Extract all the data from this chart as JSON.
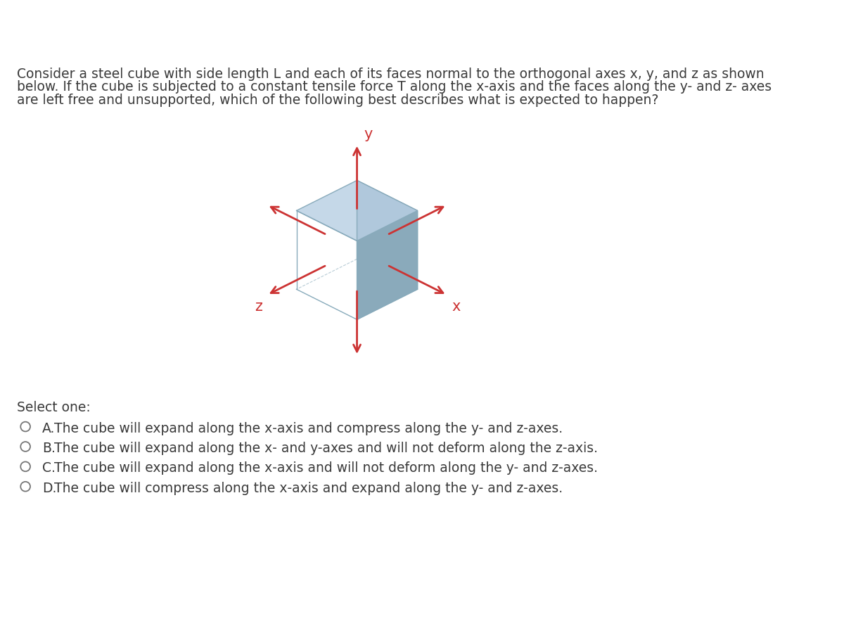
{
  "background_color": "#ffffff",
  "question_text_line1": "Consider a steel cube with side length L and each of its faces normal to the orthogonal axes x, y, and z as shown",
  "question_text_line2": "below. If the cube is subjected to a constant tensile force T along the x-axis and the faces along the y- and z- axes",
  "question_text_line3": "are left free and unsupported, which of the following best describes what is expected to happen?",
  "question_fontsize": 13.5,
  "question_color": "#3a3a3a",
  "select_one_text": "Select one:",
  "select_one_fontsize": 13.5,
  "select_one_color": "#3a3a3a",
  "options": [
    {
      "label": "A.",
      "text": "The cube will expand along the x-axis and compress along the y- and z-axes."
    },
    {
      "label": "B.",
      "text": "The cube will expand along the x- and y-axes and will not deform along the z-axis."
    },
    {
      "label": "C.",
      "text": "The cube will expand along the x-axis and will not deform along the y- and z-axes."
    },
    {
      "label": "D.",
      "text": "The cube will compress along the x-axis and expand along the y- and z-axes."
    }
  ],
  "option_fontsize": 13.5,
  "option_color": "#3a3a3a",
  "circle_color": "#777777",
  "axis_color": "#cc3333",
  "axis_label_color": "#cc3333",
  "axis_label_fontsize": 15,
  "cube_face_top_color": "#c5d8e8",
  "cube_face_left_color": "#b0c8dc",
  "cube_face_right_color": "#8aaabb",
  "cube_edge_color": "#88aabb",
  "cube_edge_linewidth": 1.0
}
